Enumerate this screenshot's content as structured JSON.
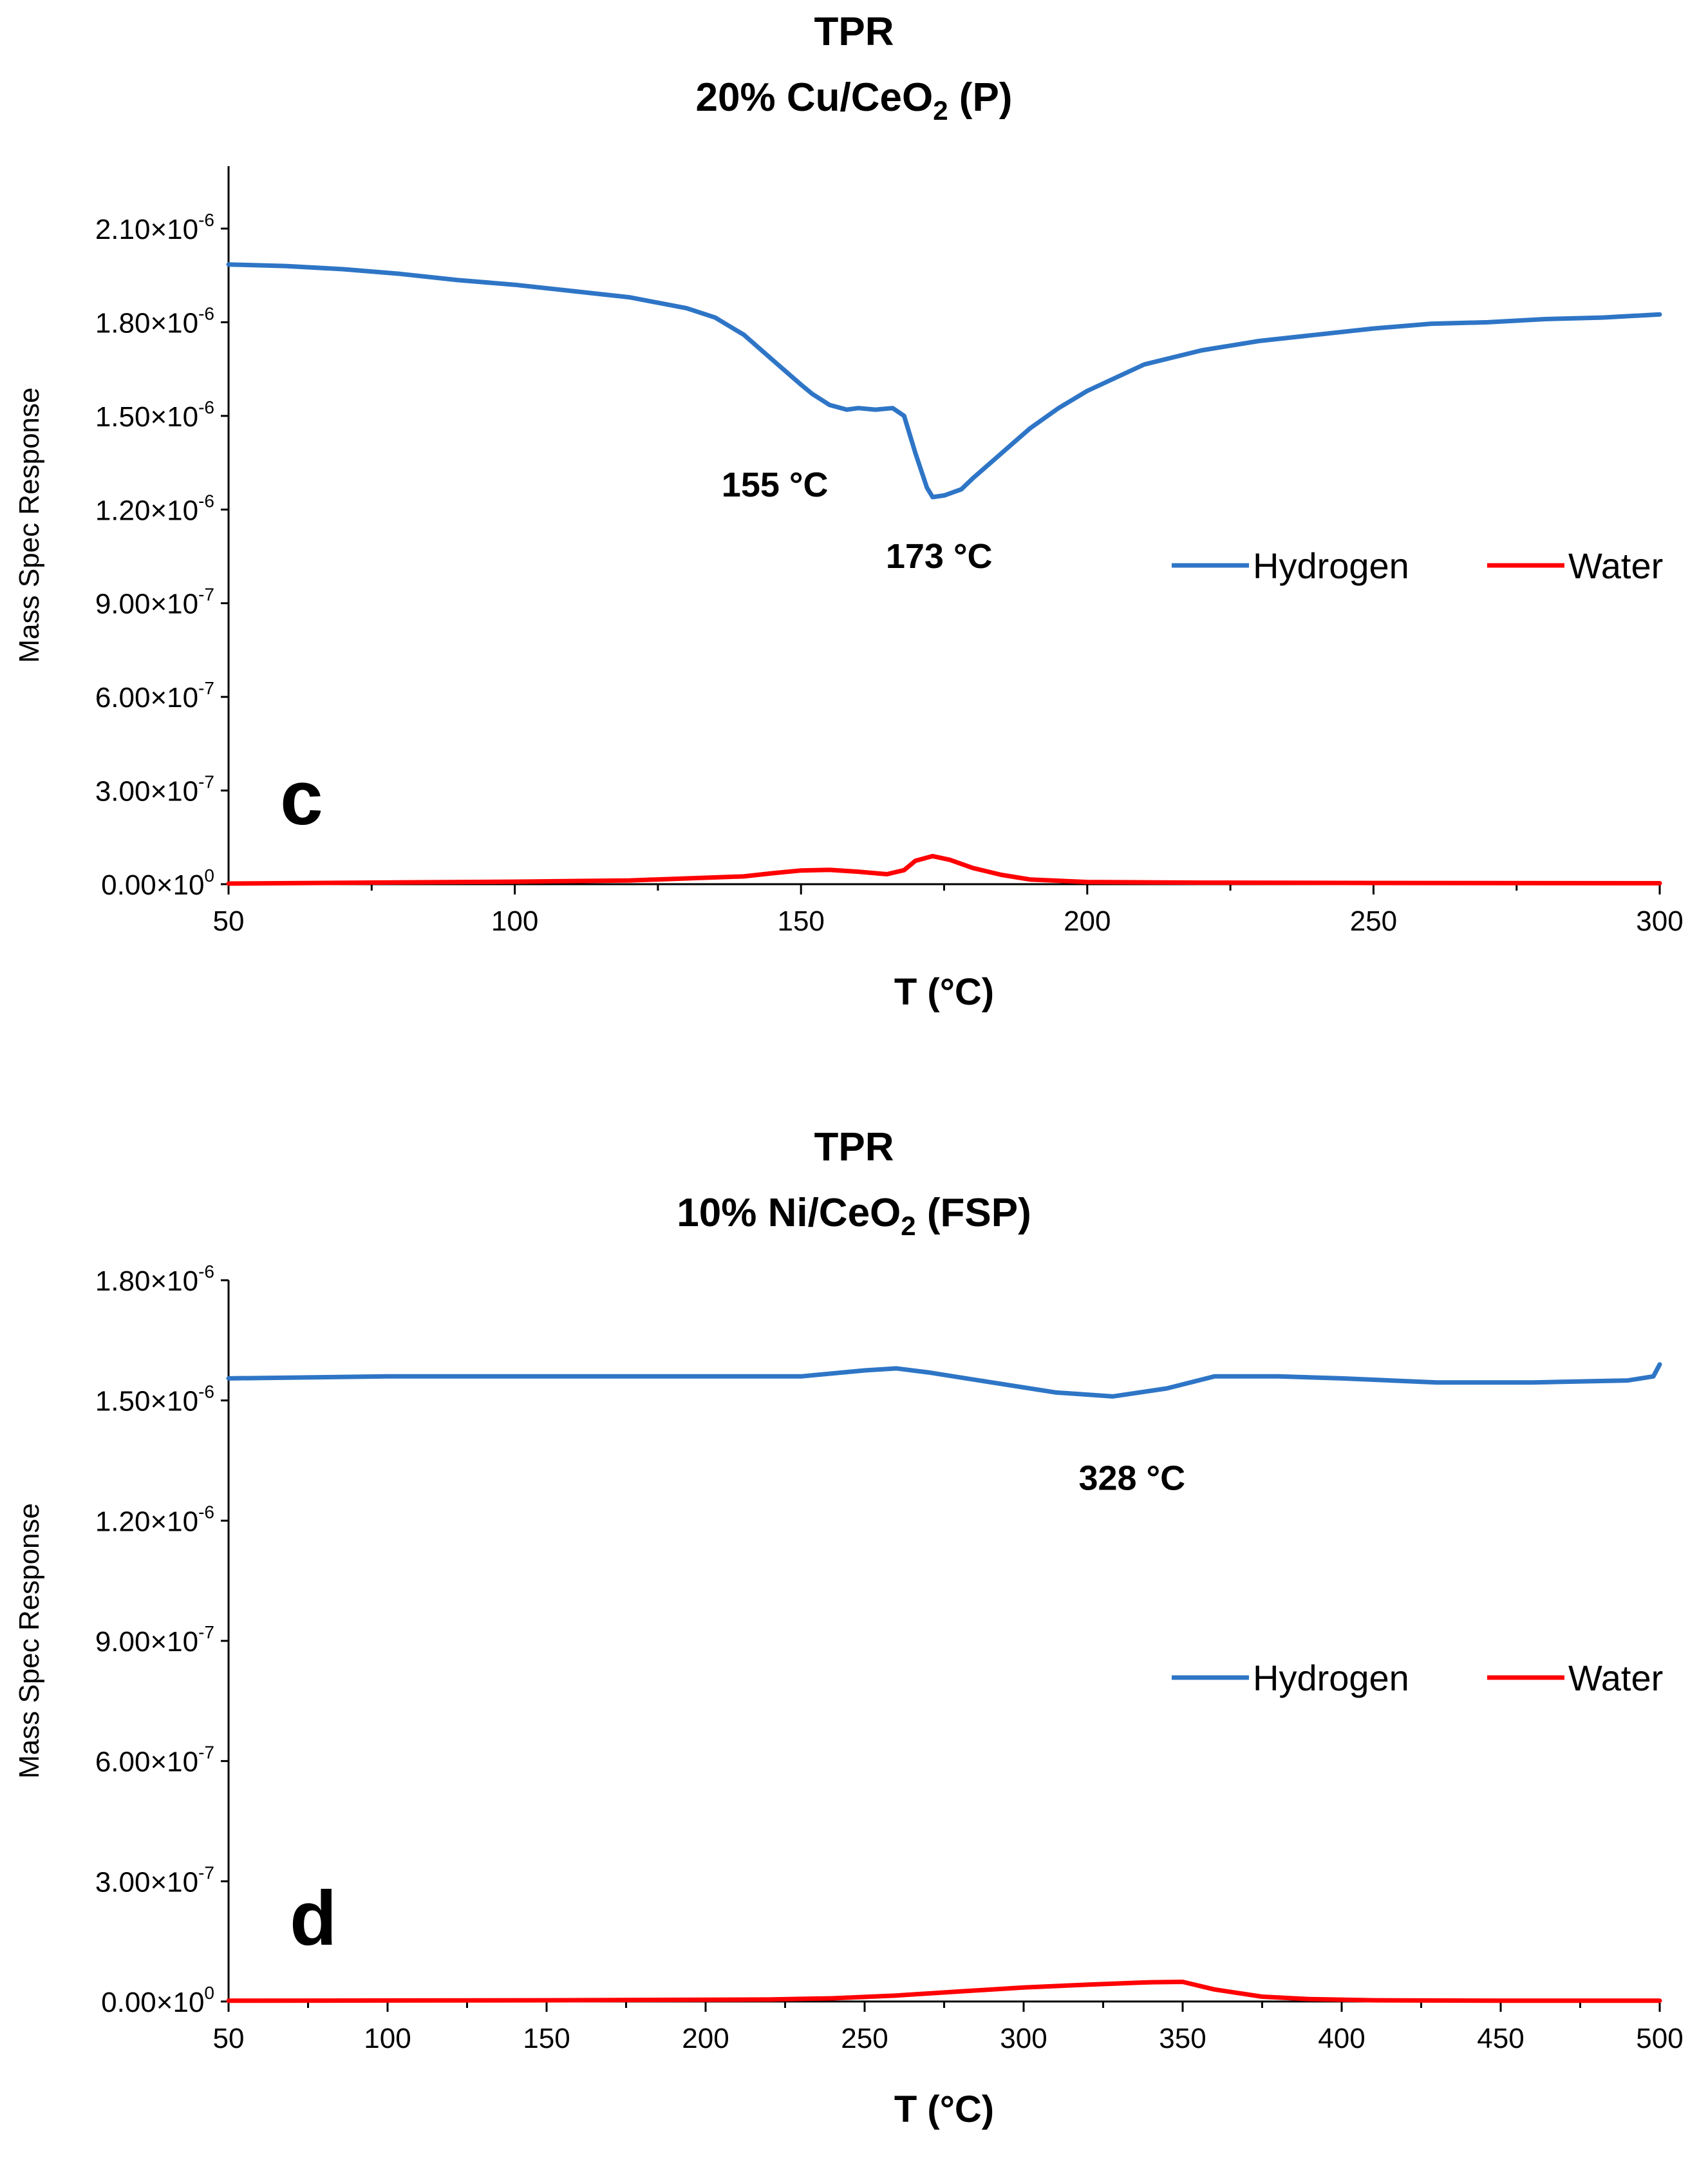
{
  "chart_data": [
    {
      "type": "line",
      "panel_letter": "c",
      "title_line1": "TPR",
      "title_line2": {
        "prefix": "20% Cu/CeO",
        "sub": "2",
        "suffix": " (P)"
      },
      "xlabel": "T (°C)",
      "ylabel": "Mass Spec Response",
      "xlim": [
        50,
        300
      ],
      "ylim": [
        0,
        2.3e-06
      ],
      "x_ticks": [
        50,
        100,
        150,
        200,
        250,
        300
      ],
      "y_ticks": [
        {
          "value": 0,
          "mant": "0.00",
          "exp": "0"
        },
        {
          "value": 3e-07,
          "mant": "3.00",
          "exp": "-7"
        },
        {
          "value": 6e-07,
          "mant": "6.00",
          "exp": "-7"
        },
        {
          "value": 9e-07,
          "mant": "9.00",
          "exp": "-7"
        },
        {
          "value": 1.2e-06,
          "mant": "1.20",
          "exp": "-6"
        },
        {
          "value": 1.5e-06,
          "mant": "1.50",
          "exp": "-6"
        },
        {
          "value": 1.8e-06,
          "mant": "1.80",
          "exp": "-6"
        },
        {
          "value": 2.1e-06,
          "mant": "2.10",
          "exp": "-6"
        }
      ],
      "legend": {
        "placement": "right-middle"
      },
      "series": [
        {
          "name": "Hydrogen",
          "color": "#2E75C6",
          "x": [
            50,
            60,
            70,
            80,
            90,
            100,
            110,
            120,
            130,
            135,
            140,
            145,
            150,
            152,
            155,
            158,
            160,
            163,
            166,
            168,
            170,
            172,
            173,
            175,
            178,
            180,
            185,
            190,
            195,
            200,
            210,
            220,
            230,
            240,
            250,
            260,
            270,
            280,
            290,
            300
          ],
          "y": [
            1.985e-06,
            1.98e-06,
            1.97e-06,
            1.955e-06,
            1.935e-06,
            1.92e-06,
            1.9e-06,
            1.88e-06,
            1.845e-06,
            1.815e-06,
            1.76e-06,
            1.68e-06,
            1.6e-06,
            1.57e-06,
            1.535e-06,
            1.52e-06,
            1.525e-06,
            1.52e-06,
            1.525e-06,
            1.5e-06,
            1.38e-06,
            1.27e-06,
            1.24e-06,
            1.245e-06,
            1.265e-06,
            1.3e-06,
            1.38e-06,
            1.46e-06,
            1.525e-06,
            1.58e-06,
            1.665e-06,
            1.71e-06,
            1.74e-06,
            1.76e-06,
            1.78e-06,
            1.795e-06,
            1.8e-06,
            1.81e-06,
            1.815e-06,
            1.825e-06
          ]
        },
        {
          "name": "Water",
          "color": "#FF0000",
          "x": [
            50,
            100,
            120,
            140,
            145,
            150,
            155,
            160,
            165,
            168,
            170,
            173,
            176,
            180,
            185,
            190,
            200,
            220,
            250,
            300
          ],
          "y": [
            2e-09,
            8e-09,
            1.2e-08,
            2.5e-08,
            3.5e-08,
            4.4e-08,
            4.6e-08,
            4e-08,
            3.2e-08,
            4.5e-08,
            7.5e-08,
            9e-08,
            7.8e-08,
            5.2e-08,
            3e-08,
            1.5e-08,
            7e-09,
            5e-09,
            4e-09,
            3e-09
          ]
        }
      ],
      "annotations": [
        {
          "text": "155 °C",
          "x": 155,
          "y": 1.52e-06
        },
        {
          "text": "173 °C",
          "x": 173,
          "y": 1.24e-06
        }
      ]
    },
    {
      "type": "line",
      "panel_letter": "d",
      "title_line1": "TPR",
      "title_line2": {
        "prefix": "10% Ni/CeO",
        "sub": "2",
        "suffix": " (FSP)"
      },
      "xlabel": "T (°C)",
      "ylabel": "Mass Spec Response",
      "xlim": [
        50,
        500
      ],
      "ylim": [
        0,
        1.8e-06
      ],
      "x_ticks": [
        50,
        100,
        150,
        200,
        250,
        300,
        350,
        400,
        450,
        500
      ],
      "y_ticks": [
        {
          "value": 0,
          "mant": "0.00",
          "exp": "0"
        },
        {
          "value": 3e-07,
          "mant": "3.00",
          "exp": "-7"
        },
        {
          "value": 6e-07,
          "mant": "6.00",
          "exp": "-7"
        },
        {
          "value": 9e-07,
          "mant": "9.00",
          "exp": "-7"
        },
        {
          "value": 1.2e-06,
          "mant": "1.20",
          "exp": "-6"
        },
        {
          "value": 1.5e-06,
          "mant": "1.50",
          "exp": "-6"
        },
        {
          "value": 1.8e-06,
          "mant": "1.80",
          "exp": "-6"
        }
      ],
      "legend": {
        "placement": "right-middle"
      },
      "series": [
        {
          "name": "Hydrogen",
          "color": "#2E75C6",
          "x": [
            50,
            100,
            150,
            200,
            230,
            250,
            260,
            270,
            290,
            310,
            328,
            345,
            360,
            380,
            400,
            430,
            460,
            490,
            498,
            500
          ],
          "y": [
            1.555e-06,
            1.56e-06,
            1.56e-06,
            1.56e-06,
            1.56e-06,
            1.575e-06,
            1.58e-06,
            1.57e-06,
            1.545e-06,
            1.52e-06,
            1.51e-06,
            1.53e-06,
            1.56e-06,
            1.56e-06,
            1.555e-06,
            1.545e-06,
            1.545e-06,
            1.55e-06,
            1.56e-06,
            1.59e-06
          ]
        },
        {
          "name": "Water",
          "color": "#FF0000",
          "x": [
            50,
            150,
            220,
            240,
            260,
            280,
            300,
            320,
            340,
            350,
            360,
            375,
            390,
            410,
            450,
            500
          ],
          "y": [
            2e-09,
            3e-09,
            5e-09,
            8e-09,
            1.5e-08,
            2.5e-08,
            3.5e-08,
            4.2e-08,
            4.8e-08,
            4.9e-08,
            3e-08,
            1.2e-08,
            6e-09,
            3e-09,
            2e-09,
            2e-09
          ]
        }
      ],
      "annotations": [
        {
          "text": "328 °C",
          "x": 328,
          "y": 1.51e-06
        }
      ]
    }
  ]
}
